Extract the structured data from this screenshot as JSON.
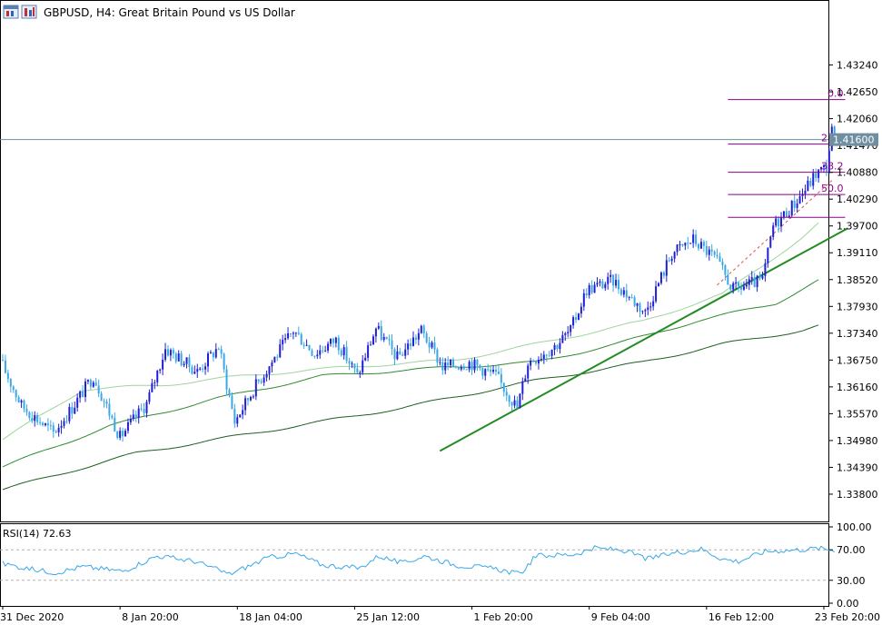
{
  "window": {
    "icons": [
      "window-icon",
      "chart-type-icon"
    ],
    "title": "GBPUSD, H4:  Great Britain Pound vs US Dollar"
  },
  "chart_data": {
    "type": "candlestick",
    "symbol": "GBPUSD",
    "timeframe": "H4",
    "title": "GBPUSD, H4:  Great Britain Pound vs US Dollar",
    "price_axis": {
      "ylim": [
        1.332,
        1.4465
      ],
      "ticks": [
        "1.43240",
        "1.42650",
        "1.42060",
        "1.41470",
        "1.40880",
        "1.40290",
        "1.39700",
        "1.39110",
        "1.38520",
        "1.37930",
        "1.37340",
        "1.36750",
        "1.36160",
        "1.35570",
        "1.34980",
        "1.34390",
        "1.33800"
      ]
    },
    "time_axis": {
      "labels": [
        "31 Dec 2020",
        "8 Jan 20:00",
        "18 Jan 04:00",
        "25 Jan 12:00",
        "1 Feb 20:00",
        "9 Feb 04:00",
        "16 Feb 12:00",
        "23 Feb 20:00"
      ],
      "label_index": [
        0,
        44,
        88,
        132,
        176,
        220,
        264,
        308
      ],
      "bar_count": 309
    },
    "current_price": "1.41600",
    "colors": {
      "bull_candle": "#1f1fd6",
      "bear_candle": "#3aa8e8",
      "ma_fast": "#9ed49e",
      "ma_mid": "#2e8b2e",
      "ma_slow": "#1f5f1f",
      "trendline": "#228b22",
      "fibonacci": "#8b008b",
      "rsi_line": "#3aa8e8",
      "price_line": "#6f8fa0"
    },
    "anchors": [
      [
        0,
        1.3675
      ],
      [
        8,
        1.3575
      ],
      [
        20,
        1.3515
      ],
      [
        27,
        1.357
      ],
      [
        35,
        1.364
      ],
      [
        45,
        1.3505
      ],
      [
        55,
        1.358
      ],
      [
        62,
        1.37
      ],
      [
        74,
        1.365
      ],
      [
        82,
        1.3705
      ],
      [
        88,
        1.354
      ],
      [
        96,
        1.362
      ],
      [
        110,
        1.374
      ],
      [
        118,
        1.369
      ],
      [
        126,
        1.372
      ],
      [
        134,
        1.364
      ],
      [
        141,
        1.3745
      ],
      [
        149,
        1.368
      ],
      [
        158,
        1.374
      ],
      [
        166,
        1.366
      ],
      [
        176,
        1.367
      ],
      [
        186,
        1.364
      ],
      [
        194,
        1.357
      ],
      [
        198,
        1.367
      ],
      [
        208,
        1.3705
      ],
      [
        214,
        1.374
      ],
      [
        220,
        1.383
      ],
      [
        230,
        1.385
      ],
      [
        242,
        1.378
      ],
      [
        252,
        1.391
      ],
      [
        260,
        1.394
      ],
      [
        268,
        1.39
      ],
      [
        275,
        1.383
      ],
      [
        286,
        1.385
      ],
      [
        290,
        1.397
      ],
      [
        298,
        1.402
      ],
      [
        302,
        1.405
      ],
      [
        306,
        1.4085
      ],
      [
        310,
        1.41
      ],
      [
        312,
        1.418
      ]
    ],
    "moving_averages": [
      {
        "name": "fast",
        "anchors": [
          [
            0,
            1.35
          ],
          [
            30,
            1.361
          ],
          [
            60,
            1.362
          ],
          [
            90,
            1.364
          ],
          [
            130,
            1.366
          ],
          [
            170,
            1.3675
          ],
          [
            200,
            1.371
          ],
          [
            240,
            1.376
          ],
          [
            270,
            1.382
          ],
          [
            300,
            1.3945
          ],
          [
            306,
            1.3975
          ]
        ]
      },
      {
        "name": "mid",
        "anchors": [
          [
            0,
            1.344
          ],
          [
            40,
            1.353
          ],
          [
            80,
            1.359
          ],
          [
            120,
            1.364
          ],
          [
            170,
            1.366
          ],
          [
            200,
            1.367
          ],
          [
            230,
            1.371
          ],
          [
            260,
            1.376
          ],
          [
            290,
            1.38
          ],
          [
            306,
            1.385
          ]
        ]
      },
      {
        "name": "slow",
        "anchors": [
          [
            0,
            1.339
          ],
          [
            50,
            1.347
          ],
          [
            100,
            1.352
          ],
          [
            150,
            1.357
          ],
          [
            200,
            1.363
          ],
          [
            240,
            1.367
          ],
          [
            270,
            1.371
          ],
          [
            300,
            1.374
          ],
          [
            306,
            1.375
          ]
        ]
      }
    ],
    "trendline": {
      "from": [
        164,
        1.3475
      ],
      "to": [
        317,
        1.3965
      ]
    },
    "dashed_line": {
      "from": [
        268,
        1.384
      ],
      "to": [
        311,
        1.407
      ]
    },
    "fibonacci": {
      "from_bar": 272,
      "to_bar": 316,
      "levels": [
        {
          "label": "0.0",
          "price": 1.4248
        },
        {
          "label": "23.6",
          "price": 1.415
        },
        {
          "label": "38.2",
          "price": 1.4088
        },
        {
          "label": "50.0",
          "price": 1.4039
        },
        {
          "label": "",
          "price": 1.3989
        }
      ]
    },
    "rsi": {
      "label": "RSI(14) 72.63",
      "period": 14,
      "value": 72.63,
      "ylim": [
        0,
        100
      ],
      "ticks": [
        "100.00",
        "70.00",
        "30.00",
        "0.00"
      ],
      "levels": [
        70,
        30
      ],
      "anchors": [
        [
          0,
          52
        ],
        [
          10,
          45
        ],
        [
          20,
          40
        ],
        [
          30,
          48
        ],
        [
          45,
          42
        ],
        [
          58,
          62
        ],
        [
          72,
          55
        ],
        [
          85,
          38
        ],
        [
          100,
          60
        ],
        [
          110,
          65
        ],
        [
          120,
          50
        ],
        [
          134,
          46
        ],
        [
          141,
          62
        ],
        [
          150,
          52
        ],
        [
          158,
          62
        ],
        [
          170,
          50
        ],
        [
          185,
          45
        ],
        [
          194,
          38
        ],
        [
          200,
          62
        ],
        [
          214,
          64
        ],
        [
          222,
          72
        ],
        [
          232,
          70
        ],
        [
          242,
          58
        ],
        [
          252,
          66
        ],
        [
          262,
          71
        ],
        [
          270,
          58
        ],
        [
          276,
          55
        ],
        [
          286,
          68
        ],
        [
          298,
          70
        ],
        [
          306,
          72
        ],
        [
          311,
          70
        ]
      ]
    }
  }
}
